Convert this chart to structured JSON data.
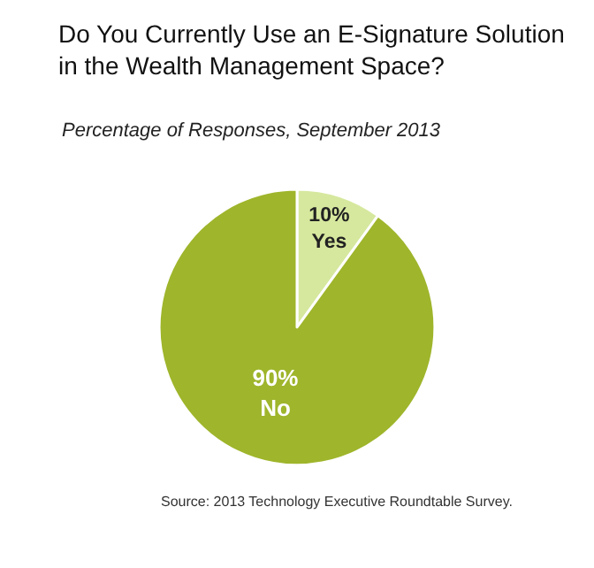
{
  "chart_data": {
    "type": "pie",
    "title": "Do You Currently Use an E-Signature Solution in the Wealth Management Space?",
    "subtitle": "Percentage of Responses, September 2013",
    "categories": [
      "Yes",
      "No"
    ],
    "values": [
      10,
      90
    ],
    "colors": [
      "#d6e89e",
      "#9fb52b"
    ],
    "value_labels": [
      "10%",
      "90%"
    ],
    "legend": false,
    "annotations": [
      "Source: 2013 Technology Executive Roundtable Survey."
    ]
  }
}
